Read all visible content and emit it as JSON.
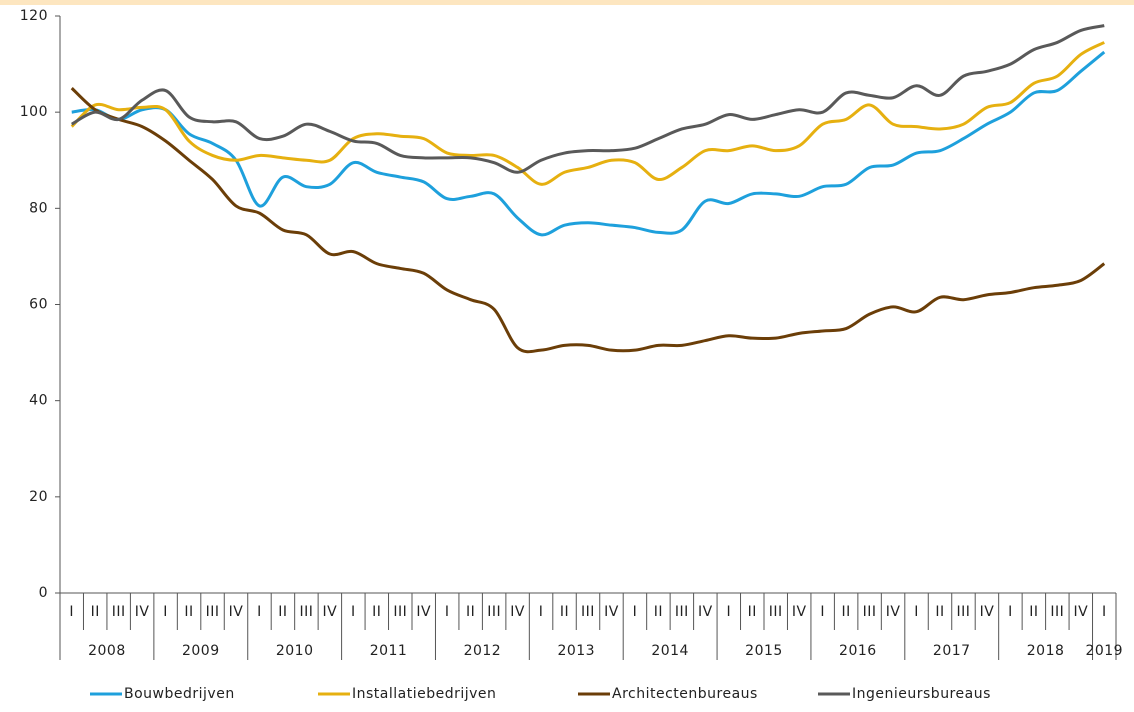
{
  "chart_data": {
    "type": "line",
    "categories": [
      "I",
      "II",
      "III",
      "IV",
      "I",
      "II",
      "III",
      "IV",
      "I",
      "II",
      "III",
      "IV",
      "I",
      "II",
      "III",
      "IV",
      "I",
      "II",
      "III",
      "IV",
      "I",
      "II",
      "III",
      "IV",
      "I",
      "II",
      "III",
      "IV",
      "I",
      "II",
      "III",
      "IV",
      "I",
      "II",
      "III",
      "IV",
      "I",
      "II",
      "III",
      "IV",
      "I",
      "II",
      "III",
      "IV",
      "I"
    ],
    "year_labels": [
      "2008",
      "2009",
      "2010",
      "2011",
      "2012",
      "2013",
      "2014",
      "2015",
      "2016",
      "2017",
      "2018",
      "2019"
    ],
    "ylim": [
      0,
      120
    ],
    "yticks": [
      0,
      20,
      40,
      60,
      80,
      100,
      120
    ],
    "series": [
      {
        "name": "Bouwbedrijven",
        "color": "#1ea0dc",
        "values": [
          100,
          100.5,
          98.5,
          100.5,
          100.5,
          95.5,
          93.5,
          90,
          80.5,
          86.5,
          84.5,
          85,
          89.5,
          87.5,
          86.5,
          85.5,
          82,
          82.5,
          83,
          78,
          74.5,
          76.5,
          77,
          76.5,
          76,
          75,
          75.5,
          81.5,
          81,
          83,
          83,
          82.5,
          84.5,
          85,
          88.5,
          89,
          91.5,
          92,
          94.5,
          97.5,
          100,
          104,
          104.5,
          108.5,
          112.5
        ]
      },
      {
        "name": "Installatiebedrijven",
        "color": "#e6b010",
        "values": [
          97,
          101.5,
          100.5,
          101,
          100.5,
          94,
          91,
          90,
          91,
          90.5,
          90,
          90,
          94.5,
          95.5,
          95,
          94.5,
          91.5,
          91,
          91,
          88.5,
          85,
          87.5,
          88.5,
          90,
          89.5,
          86,
          88.5,
          92,
          92,
          93,
          92,
          93,
          97.5,
          98.5,
          101.5,
          97.5,
          97,
          96.5,
          97.5,
          101,
          102,
          106,
          107.5,
          112,
          114.5
        ]
      },
      {
        "name": "Architectenbureaus",
        "color": "#6b3e08",
        "values": [
          105,
          100.5,
          98.5,
          97,
          94,
          90,
          86,
          80.5,
          79,
          75.5,
          74.5,
          70.5,
          71,
          68.5,
          67.5,
          66.5,
          63,
          61,
          59,
          51,
          50.5,
          51.5,
          51.5,
          50.5,
          50.5,
          51.5,
          51.5,
          52.5,
          53.5,
          53,
          53,
          54,
          54.5,
          55,
          58,
          59.5,
          58.5,
          61.5,
          61,
          62,
          62.5,
          63.5,
          64,
          65,
          68.5
        ]
      },
      {
        "name": "Ingenieursbureaus",
        "color": "#595959",
        "values": [
          97.5,
          100,
          98.5,
          102.5,
          104.5,
          99,
          98,
          98,
          94.5,
          95,
          97.5,
          96,
          94,
          93.5,
          91,
          90.5,
          90.5,
          90.5,
          89.5,
          87.5,
          90,
          91.5,
          92,
          92,
          92.5,
          94.5,
          96.5,
          97.5,
          99.5,
          98.5,
          99.5,
          100.5,
          100,
          104,
          103.5,
          103,
          105.5,
          103.5,
          107.5,
          108.5,
          110,
          113,
          114.5,
          117,
          118
        ]
      }
    ]
  }
}
